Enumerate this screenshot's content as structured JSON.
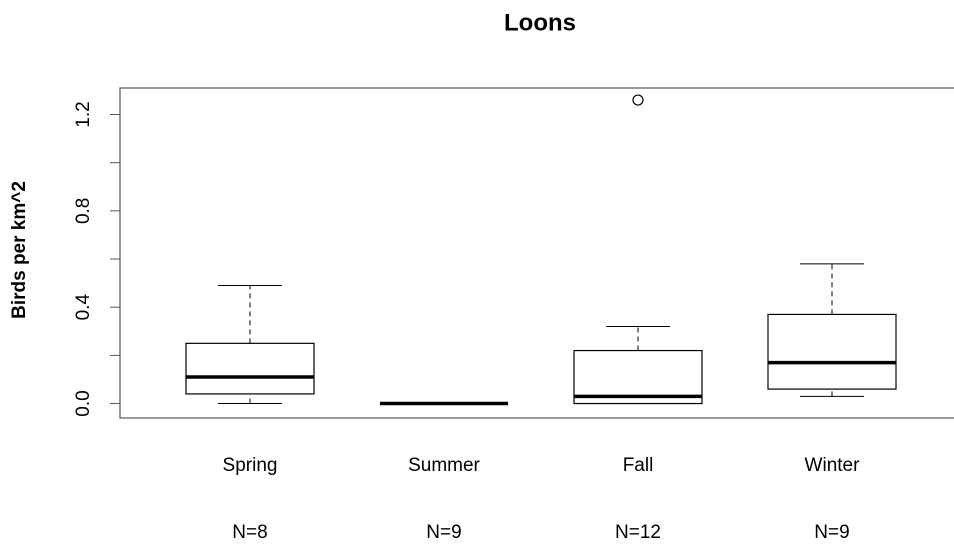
{
  "chart_data": {
    "type": "box",
    "title": "Loons",
    "y_label": "Birds per km^2",
    "categories": [
      "Spring",
      "Summer",
      "Fall",
      "Winter"
    ],
    "counts": [
      "N=8",
      "N=9",
      "N=12",
      "N=9"
    ],
    "min": [
      0,
      0,
      0,
      0.03
    ],
    "q1": [
      0.04,
      0,
      0,
      0.06
    ],
    "median": [
      0.11,
      0,
      0.03,
      0.17
    ],
    "q3": [
      0.25,
      0,
      0.22,
      0.37
    ],
    "max": [
      0.49,
      0,
      0.32,
      0.58
    ],
    "outliers": [
      [],
      [],
      [
        1.26
      ],
      []
    ],
    "color": "#000000",
    "ylim": [
      -0.06,
      1.31
    ],
    "yticks": [
      {
        "value": 0,
        "label": "0.0"
      },
      0.4,
      0.8,
      1.2
    ],
    "minor_yticks": [
      0.2,
      0.6,
      1.0
    ]
  }
}
